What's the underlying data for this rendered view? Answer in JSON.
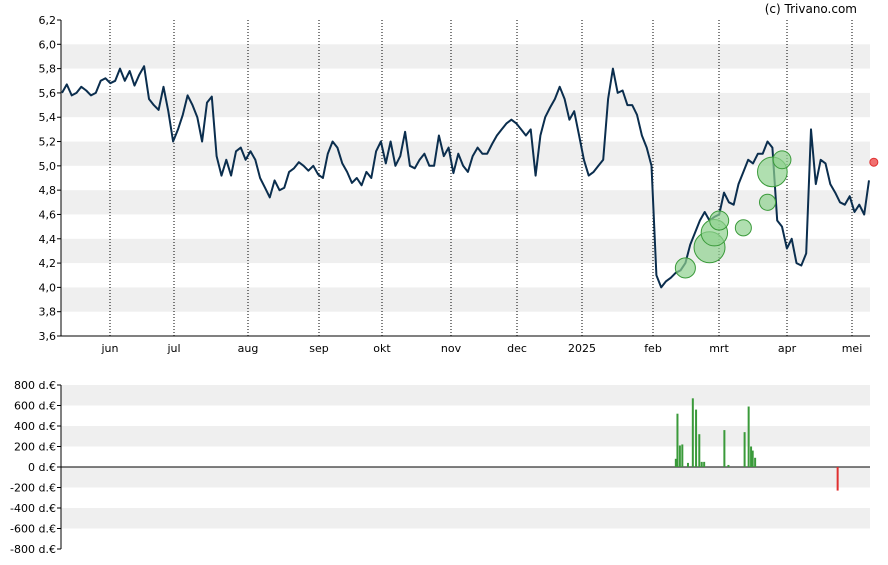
{
  "credit": "(c) Trivano.com",
  "colors": {
    "band": "#efefef",
    "price_line": "#0b2e4e",
    "buy": "#3a9a3a",
    "buy_fill": "#8fd18f",
    "sell": "#e03030",
    "sell_fill": "#f07070",
    "axis": "#000000"
  },
  "chart_data": [
    {
      "type": "line",
      "title": "",
      "ylim": [
        3.6,
        6.2
      ],
      "y_ticks": [
        "3,6",
        "3,8",
        "4,0",
        "4,2",
        "4,4",
        "4,6",
        "4,8",
        "5,0",
        "5,2",
        "5,4",
        "5,6",
        "5,8",
        "6,0",
        "6,2"
      ],
      "x_ticks": [
        "jun",
        "jul",
        "aug",
        "sep",
        "okt",
        "nov",
        "dec",
        "2025",
        "feb",
        "mrt",
        "apr",
        "mei"
      ],
      "grid": "dotted vertical month lines, alternating horizontal bands",
      "series": [
        {
          "values": [
            5.6,
            5.67,
            5.58,
            5.6,
            5.65,
            5.62,
            5.58,
            5.6,
            5.7,
            5.72,
            5.68,
            5.7,
            5.8,
            5.7,
            5.78,
            5.66,
            5.75,
            5.82,
            5.55,
            5.5,
            5.46,
            5.65,
            5.45,
            5.2,
            5.3,
            5.42,
            5.58,
            5.5,
            5.4,
            5.2,
            5.52,
            5.57,
            5.08,
            4.92,
            5.05,
            4.92,
            5.12,
            5.15,
            5.05,
            5.12,
            5.05,
            4.9,
            4.82,
            4.74,
            4.88,
            4.8,
            4.82,
            4.95,
            4.98,
            5.03,
            5.0,
            4.96,
            5.0,
            4.93,
            4.9,
            5.1,
            5.2,
            5.15,
            5.02,
            4.95,
            4.86,
            4.9,
            4.84,
            4.95,
            4.9,
            5.12,
            5.2,
            5.02,
            5.2,
            5.0,
            5.08,
            5.28,
            5.0,
            4.98,
            5.05,
            5.1,
            5.0,
            5.0,
            5.25,
            5.08,
            5.15,
            4.94,
            5.1,
            5.0,
            4.95,
            5.08,
            5.15,
            5.1,
            5.1,
            5.18,
            5.25,
            5.3,
            5.35,
            5.38,
            5.35,
            5.3,
            5.25,
            5.3,
            4.92,
            5.25,
            5.4,
            5.48,
            5.55,
            5.65,
            5.55,
            5.38,
            5.45,
            5.25,
            5.05,
            4.92,
            4.95,
            5.0,
            5.05,
            5.55,
            5.8,
            5.6,
            5.62,
            5.5,
            5.5,
            5.42,
            5.25,
            5.15,
            5.0,
            4.1,
            4.0,
            4.05,
            4.08,
            4.12,
            4.14,
            4.2,
            4.35,
            4.45,
            4.55,
            4.62,
            4.55,
            4.58,
            4.6,
            4.78,
            4.7,
            4.68,
            4.85,
            4.95,
            5.05,
            5.02,
            5.1,
            5.1,
            5.2,
            5.15,
            4.55,
            4.5,
            4.32,
            4.4,
            4.2,
            4.18,
            4.28,
            5.3,
            4.85,
            5.05,
            5.02,
            4.85,
            4.78,
            4.7,
            4.68,
            4.75,
            4.62,
            4.68,
            4.6,
            4.88
          ]
        }
      ],
      "events": {
        "buy": [
          {
            "date_index": 129,
            "price": 4.16,
            "volume": 180
          },
          {
            "date_index": 134,
            "price": 4.33,
            "volume": 650
          },
          {
            "date_index": 135,
            "price": 4.45,
            "volume": 420
          },
          {
            "date_index": 136,
            "price": 4.55,
            "volume": 150
          },
          {
            "date_index": 141,
            "price": 4.49,
            "volume": 80
          },
          {
            "date_index": 146,
            "price": 4.7,
            "volume": 80
          },
          {
            "date_index": 147,
            "price": 4.95,
            "volume": 580
          },
          {
            "date_index": 149,
            "price": 5.05,
            "volume": 120
          }
        ],
        "sell": [
          {
            "date_index": 168,
            "price": 5.03,
            "volume": -230
          }
        ]
      }
    },
    {
      "type": "bar",
      "title": "",
      "ylim": [
        -800,
        800
      ],
      "y_ticks": [
        "800 d.€",
        "600 d.€",
        "400 d.€",
        "200 d.€",
        "0 d.€",
        "-200 d.€",
        "-400 d.€",
        "-600 d.€",
        "-800 d.€"
      ],
      "series": [
        {
          "positions": [
            0.76,
            0.762,
            0.765,
            0.768,
            0.775,
            0.781,
            0.785,
            0.789,
            0.792,
            0.795,
            0.8,
            0.82,
            0.825,
            0.845,
            0.85,
            0.853,
            0.855,
            0.858,
            0.862
          ],
          "values": [
            80,
            520,
            210,
            220,
            40,
            670,
            560,
            320,
            50,
            50,
            0,
            360,
            20,
            340,
            590,
            200,
            160,
            90,
            0
          ]
        },
        {
          "positions": [
            0.96
          ],
          "values": [
            -230
          ]
        }
      ]
    }
  ]
}
